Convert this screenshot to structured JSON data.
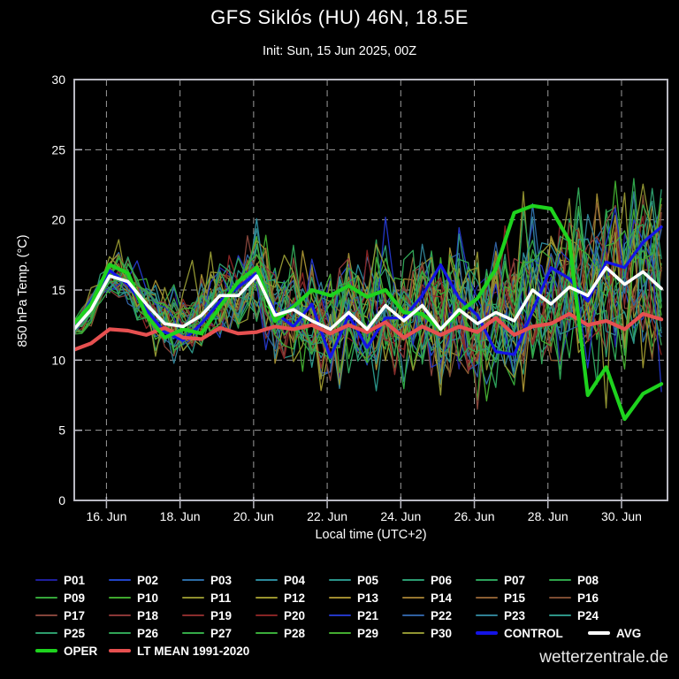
{
  "header": {
    "title": "GFS Siklós (HU) 46N, 18.5E",
    "subtitle": "Init: Sun, 15 Jun 2025, 00Z"
  },
  "footer": {
    "watermark": "wetterzentrale.de"
  },
  "colors": {
    "background": "#000000",
    "plot_border": "#b9b9c2",
    "gridline": "#9c9c9c",
    "tick_label": "#ffffff"
  },
  "chart_data": {
    "type": "line",
    "title": "GFS Siklós (HU) 46N, 18.5E",
    "subtitle": "Init: Sun, 15 Jun 2025, 00Z",
    "xlabel": "Local time (UTC+2)",
    "ylabel": "850 hPa Temp. (°C)",
    "ylim": [
      0,
      30
    ],
    "yticks": [
      0,
      5,
      10,
      15,
      20,
      25,
      30
    ],
    "grid": "dashed",
    "legend_position": "bottom",
    "x_axis_range_hours": [
      3,
      390
    ],
    "xticks": [
      {
        "label": "16. Jun",
        "hour": 24
      },
      {
        "label": "18. Jun",
        "hour": 72
      },
      {
        "label": "20. Jun",
        "hour": 120
      },
      {
        "label": "22. Jun",
        "hour": 168
      },
      {
        "label": "24. Jun",
        "hour": 216
      },
      {
        "label": "26. Jun",
        "hour": 264
      },
      {
        "label": "28. Jun",
        "hour": 312
      },
      {
        "label": "30. Jun",
        "hour": 360
      }
    ],
    "series_start_hour": 2,
    "series_step_hours": 12,
    "series": [
      {
        "name": "CONTROL",
        "color": "#1414e6",
        "width": 3.2,
        "values": [
          12.3,
          14.2,
          16.4,
          15.4,
          13.6,
          12.0,
          11.4,
          12.6,
          14.2,
          15.2,
          16.2,
          13.4,
          12.4,
          14.0,
          10.2,
          13.2,
          10.9,
          13.0,
          13.0,
          14.6,
          16.8,
          14.4,
          13.2,
          10.6,
          10.4,
          13.5,
          16.6,
          15.8,
          14.2,
          17.0,
          16.6,
          18.4,
          19.5
        ]
      },
      {
        "name": "LT MEAN 1991-2020",
        "color": "#e65050",
        "width": 4.2,
        "values": [
          10.7,
          11.2,
          12.2,
          12.1,
          11.8,
          12.3,
          11.6,
          11.5,
          12.3,
          11.9,
          12.0,
          12.4,
          12.2,
          12.5,
          11.9,
          12.5,
          12.0,
          12.7,
          11.6,
          12.4,
          11.8,
          12.4,
          12.0,
          13.0,
          11.8,
          12.4,
          12.6,
          13.3,
          12.5,
          12.8,
          12.2,
          13.3,
          12.9
        ]
      },
      {
        "name": "OPER",
        "color": "#1ed31e",
        "width": 4.2,
        "values": [
          12.5,
          14.0,
          16.8,
          16.2,
          13.2,
          11.6,
          12.2,
          11.9,
          13.8,
          15.6,
          16.6,
          12.8,
          13.8,
          15.0,
          14.6,
          15.3,
          14.5,
          15.0,
          13.4,
          13.3,
          12.2,
          13.4,
          14.4,
          16.5,
          20.5,
          21.0,
          20.8,
          18.5,
          7.5,
          9.5,
          5.8,
          7.6,
          8.3
        ]
      },
      {
        "name": "AVG",
        "color": "#ffffff",
        "width": 3.6,
        "values": [
          12.1,
          13.6,
          16.0,
          15.6,
          14.0,
          12.6,
          12.4,
          13.2,
          14.6,
          14.6,
          16.0,
          13.2,
          13.6,
          12.8,
          12.2,
          13.4,
          12.2,
          13.9,
          12.8,
          13.9,
          12.2,
          13.6,
          12.6,
          13.4,
          12.8,
          15.0,
          14.0,
          15.2,
          14.6,
          16.6,
          15.4,
          16.3,
          15.1
        ]
      }
    ],
    "member_step_hours": 6,
    "spread_model": {
      "base": 0.45,
      "growth": 7.0,
      "exponent": 0.62
    },
    "ensemble_members": [
      {
        "name": "P01",
        "color": "#1f1f9e",
        "seed": 11,
        "amp": 1.0,
        "bias": 0.1
      },
      {
        "name": "P02",
        "color": "#2244c8",
        "seed": 12,
        "amp": 0.9,
        "bias": -0.2
      },
      {
        "name": "P03",
        "color": "#2d6ca6",
        "seed": 13,
        "amp": 1.1,
        "bias": 0.0
      },
      {
        "name": "P04",
        "color": "#2d8a9c",
        "seed": 14,
        "amp": 0.95,
        "bias": 0.3
      },
      {
        "name": "P05",
        "color": "#2a9489",
        "seed": 15,
        "amp": 1.05,
        "bias": -0.3
      },
      {
        "name": "P06",
        "color": "#2c9c72",
        "seed": 16,
        "amp": 0.9,
        "bias": 0.2
      },
      {
        "name": "P07",
        "color": "#2da25c",
        "seed": 17,
        "amp": 1.15,
        "bias": -0.1
      },
      {
        "name": "P08",
        "color": "#2fa44a",
        "seed": 18,
        "amp": 1.0,
        "bias": 0.4
      },
      {
        "name": "P09",
        "color": "#35a63a",
        "seed": 19,
        "amp": 0.85,
        "bias": -0.4
      },
      {
        "name": "P10",
        "color": "#3fa82e",
        "seed": 20,
        "amp": 1.1,
        "bias": 0.2
      },
      {
        "name": "P11",
        "color": "#8f8f2e",
        "seed": 21,
        "amp": 1.25,
        "bias": 0.5
      },
      {
        "name": "P12",
        "color": "#9a942e",
        "seed": 22,
        "amp": 1.0,
        "bias": -0.1
      },
      {
        "name": "P13",
        "color": "#a18c30",
        "seed": 23,
        "amp": 1.2,
        "bias": 0.3
      },
      {
        "name": "P14",
        "color": "#977630",
        "seed": 24,
        "amp": 0.9,
        "bias": 0.0
      },
      {
        "name": "P15",
        "color": "#8b5e32",
        "seed": 25,
        "amp": 1.05,
        "bias": -0.2
      },
      {
        "name": "P16",
        "color": "#7d4c32",
        "seed": 26,
        "amp": 0.95,
        "bias": 0.1
      },
      {
        "name": "P17",
        "color": "#84443a",
        "seed": 27,
        "amp": 1.1,
        "bias": -0.3
      },
      {
        "name": "P18",
        "color": "#8a3636",
        "seed": 28,
        "amp": 1.0,
        "bias": 0.2
      },
      {
        "name": "P19",
        "color": "#892c2c",
        "seed": 29,
        "amp": 0.9,
        "bias": -0.1
      },
      {
        "name": "P20",
        "color": "#862424",
        "seed": 30,
        "amp": 1.15,
        "bias": 0.0
      },
      {
        "name": "P21",
        "color": "#2336c4",
        "seed": 31,
        "amp": 1.05,
        "bias": 0.3
      },
      {
        "name": "P22",
        "color": "#3060a0",
        "seed": 32,
        "amp": 0.95,
        "bias": -0.2
      },
      {
        "name": "P23",
        "color": "#308094",
        "seed": 33,
        "amp": 1.1,
        "bias": 0.1
      },
      {
        "name": "P24",
        "color": "#2d9486",
        "seed": 34,
        "amp": 1.0,
        "bias": -0.4
      },
      {
        "name": "P25",
        "color": "#2d9c6c",
        "seed": 35,
        "amp": 0.9,
        "bias": 0.2
      },
      {
        "name": "P26",
        "color": "#30a456",
        "seed": 36,
        "amp": 1.2,
        "bias": -0.1
      },
      {
        "name": "P27",
        "color": "#34aa48",
        "seed": 37,
        "amp": 1.0,
        "bias": 0.0
      },
      {
        "name": "P28",
        "color": "#3aac3a",
        "seed": 38,
        "amp": 0.85,
        "bias": 0.3
      },
      {
        "name": "P29",
        "color": "#44ac30",
        "seed": 39,
        "amp": 1.1,
        "bias": -0.2
      },
      {
        "name": "P30",
        "color": "#909432",
        "seed": 40,
        "amp": 1.45,
        "bias": 0.5
      }
    ]
  }
}
